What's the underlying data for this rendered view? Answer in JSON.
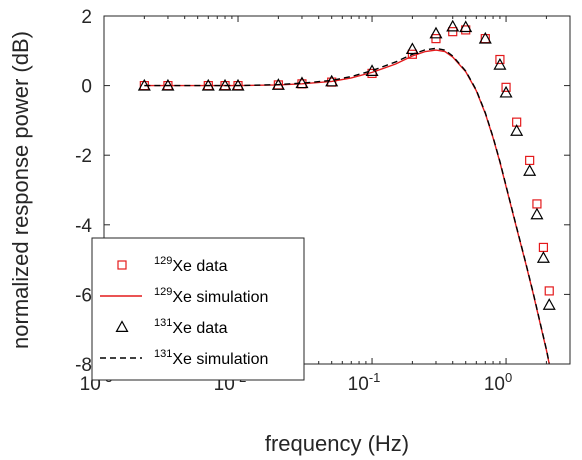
{
  "chart_data": {
    "type": "scatter",
    "xscale": "log",
    "xlim": [
      0.001,
      3
    ],
    "ylim": [
      -8,
      2
    ],
    "xlabel": "frequency (Hz)",
    "ylabel": "normalized response power (dB)",
    "grid": false,
    "legend_position": "bottom-left",
    "x_ticks": [
      {
        "value": 0.001,
        "base": "10",
        "exp": "-3"
      },
      {
        "value": 0.01,
        "base": "10",
        "exp": "-2"
      },
      {
        "value": 0.1,
        "base": "10",
        "exp": "-1"
      },
      {
        "value": 1,
        "base": "10",
        "exp": "0"
      }
    ],
    "y_ticks": [
      {
        "value": 2,
        "label": "2"
      },
      {
        "value": 0,
        "label": "0"
      },
      {
        "value": -2,
        "label": "-2"
      },
      {
        "value": -4,
        "label": "-4"
      },
      {
        "value": -6,
        "label": "-6"
      },
      {
        "value": -8,
        "label": "-8"
      }
    ],
    "series": [
      {
        "name": "129Xe data",
        "legend_sup": "129",
        "legend_text": "Xe data",
        "kind": "markers",
        "marker": "square",
        "color": "#e41a1c",
        "x": [
          0.002,
          0.003,
          0.006,
          0.008,
          0.01,
          0.02,
          0.03,
          0.05,
          0.1,
          0.2,
          0.3,
          0.4,
          0.5,
          0.7,
          0.9,
          1.0,
          1.2,
          1.5,
          1.7,
          1.9,
          2.1
        ],
        "y": [
          0.0,
          0.0,
          0.0,
          0.0,
          0.0,
          0.02,
          0.05,
          0.1,
          0.35,
          0.9,
          1.35,
          1.55,
          1.6,
          1.35,
          0.75,
          -0.05,
          -1.05,
          -2.15,
          -3.4,
          -4.65,
          -5.9
        ]
      },
      {
        "name": "129Xe simulation",
        "legend_sup": "129",
        "legend_text": "Xe simulation",
        "kind": "line",
        "dash": "",
        "color": "#e41a1c",
        "x": [
          0.002,
          0.005,
          0.01,
          0.02,
          0.03,
          0.05,
          0.07,
          0.1,
          0.15,
          0.2,
          0.25,
          0.3,
          0.35,
          0.4,
          0.5,
          0.6,
          0.7,
          0.8,
          0.9,
          1.0,
          1.2,
          1.4,
          1.6,
          1.8,
          2.0,
          2.1
        ],
        "y": [
          0.0,
          0.0,
          0.0,
          0.02,
          0.05,
          0.12,
          0.22,
          0.38,
          0.62,
          0.85,
          0.98,
          1.02,
          0.98,
          0.82,
          0.4,
          -0.15,
          -0.8,
          -1.5,
          -2.2,
          -2.9,
          -4.1,
          -5.1,
          -6.0,
          -6.85,
          -7.6,
          -8.0
        ]
      },
      {
        "name": "131Xe data",
        "legend_sup": "131",
        "legend_text": "Xe data",
        "kind": "markers",
        "marker": "triangle",
        "color": "#000000",
        "x": [
          0.002,
          0.003,
          0.006,
          0.008,
          0.01,
          0.02,
          0.03,
          0.05,
          0.1,
          0.2,
          0.3,
          0.4,
          0.5,
          0.7,
          0.9,
          1.0,
          1.2,
          1.5,
          1.7,
          1.9,
          2.1
        ],
        "y": [
          0.0,
          0.0,
          0.0,
          0.0,
          0.0,
          0.02,
          0.07,
          0.12,
          0.42,
          1.05,
          1.5,
          1.7,
          1.68,
          1.35,
          0.6,
          -0.2,
          -1.3,
          -2.45,
          -3.7,
          -4.95,
          -6.3
        ]
      },
      {
        "name": "131Xe simulation",
        "legend_sup": "131",
        "legend_text": "Xe simulation",
        "kind": "line",
        "dash": "6,4",
        "color": "#000000",
        "x": [
          0.002,
          0.005,
          0.01,
          0.02,
          0.03,
          0.05,
          0.07,
          0.1,
          0.15,
          0.2,
          0.25,
          0.3,
          0.35,
          0.4,
          0.5,
          0.6,
          0.7,
          0.8,
          0.9,
          1.0,
          1.2,
          1.4,
          1.6,
          1.8,
          2.0,
          2.1
        ],
        "y": [
          0.0,
          0.0,
          0.0,
          0.03,
          0.07,
          0.15,
          0.26,
          0.43,
          0.68,
          0.9,
          1.03,
          1.07,
          1.02,
          0.85,
          0.42,
          -0.13,
          -0.78,
          -1.48,
          -2.18,
          -2.88,
          -4.08,
          -5.08,
          -5.98,
          -6.83,
          -7.58,
          -7.98
        ]
      }
    ]
  }
}
